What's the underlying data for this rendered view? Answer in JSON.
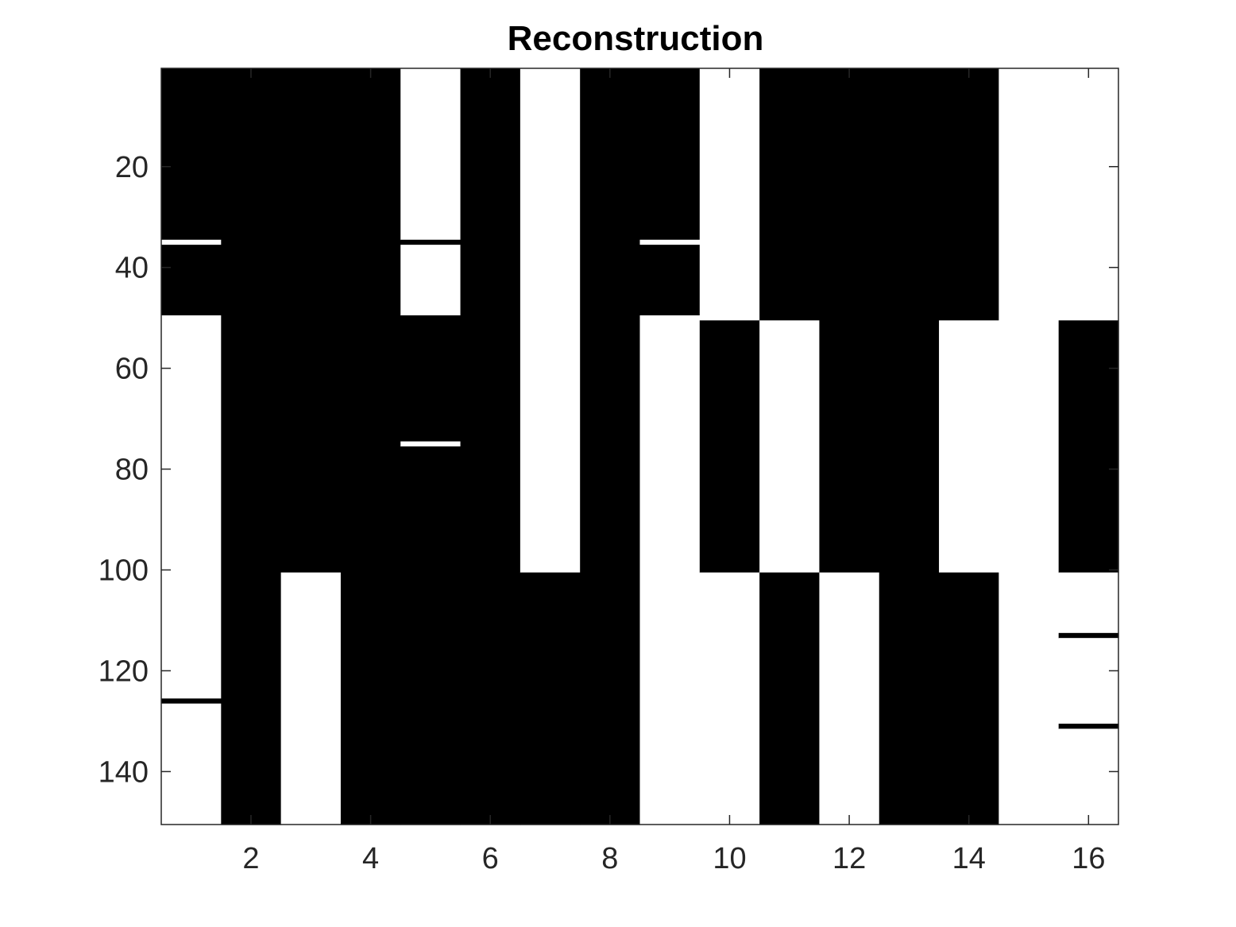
{
  "chart_data": {
    "type": "heatmap",
    "title": "Reconstruction",
    "xlabel": "",
    "ylabel": "",
    "xlim": [
      0.5,
      16.5
    ],
    "ylim": [
      0.5,
      150.5
    ],
    "y_direction": "reversed (row 1 at top)",
    "colormap": "binary: 0 = black, 1 = white",
    "grid": false,
    "x_ticks": [
      2,
      4,
      6,
      8,
      10,
      12,
      14,
      16
    ],
    "x_tick_labels": [
      "2",
      "4",
      "6",
      "8",
      "10",
      "12",
      "14",
      "16"
    ],
    "y_ticks": [
      20,
      40,
      60,
      80,
      100,
      120,
      140
    ],
    "y_tick_labels": [
      "20",
      "40",
      "60",
      "80",
      "100",
      "120",
      "140"
    ],
    "n_rows": 150,
    "n_columns": 16,
    "columns": [
      {
        "column": 1,
        "segments": [
          {
            "rows": [
              1,
              34
            ],
            "value": 0
          },
          {
            "rows": [
              35,
              35
            ],
            "value": 1
          },
          {
            "rows": [
              36,
              49
            ],
            "value": 0
          },
          {
            "rows": [
              50,
              125
            ],
            "value": 1
          },
          {
            "rows": [
              126,
              126
            ],
            "value": 0
          },
          {
            "rows": [
              127,
              150
            ],
            "value": 1
          }
        ]
      },
      {
        "column": 2,
        "segments": [
          {
            "rows": [
              1,
              150
            ],
            "value": 0
          }
        ]
      },
      {
        "column": 3,
        "segments": [
          {
            "rows": [
              1,
              100
            ],
            "value": 0
          },
          {
            "rows": [
              101,
              150
            ],
            "value": 1
          }
        ]
      },
      {
        "column": 4,
        "segments": [
          {
            "rows": [
              1,
              150
            ],
            "value": 0
          }
        ]
      },
      {
        "column": 5,
        "segments": [
          {
            "rows": [
              1,
              34
            ],
            "value": 1
          },
          {
            "rows": [
              35,
              35
            ],
            "value": 0
          },
          {
            "rows": [
              36,
              49
            ],
            "value": 1
          },
          {
            "rows": [
              50,
              74
            ],
            "value": 0
          },
          {
            "rows": [
              75,
              75
            ],
            "value": 1
          },
          {
            "rows": [
              76,
              150
            ],
            "value": 0
          }
        ]
      },
      {
        "column": 6,
        "segments": [
          {
            "rows": [
              1,
              150
            ],
            "value": 0
          }
        ]
      },
      {
        "column": 7,
        "segments": [
          {
            "rows": [
              1,
              100
            ],
            "value": 1
          },
          {
            "rows": [
              101,
              150
            ],
            "value": 0
          }
        ]
      },
      {
        "column": 8,
        "segments": [
          {
            "rows": [
              1,
              150
            ],
            "value": 0
          }
        ]
      },
      {
        "column": 9,
        "segments": [
          {
            "rows": [
              1,
              34
            ],
            "value": 0
          },
          {
            "rows": [
              35,
              35
            ],
            "value": 1
          },
          {
            "rows": [
              36,
              49
            ],
            "value": 0
          },
          {
            "rows": [
              50,
              150
            ],
            "value": 1
          }
        ]
      },
      {
        "column": 10,
        "segments": [
          {
            "rows": [
              1,
              50
            ],
            "value": 1
          },
          {
            "rows": [
              51,
              100
            ],
            "value": 0
          },
          {
            "rows": [
              101,
              150
            ],
            "value": 1
          }
        ]
      },
      {
        "column": 11,
        "segments": [
          {
            "rows": [
              1,
              50
            ],
            "value": 0
          },
          {
            "rows": [
              51,
              100
            ],
            "value": 1
          },
          {
            "rows": [
              101,
              150
            ],
            "value": 0
          }
        ]
      },
      {
        "column": 12,
        "segments": [
          {
            "rows": [
              1,
              100
            ],
            "value": 0
          },
          {
            "rows": [
              101,
              150
            ],
            "value": 1
          }
        ]
      },
      {
        "column": 13,
        "segments": [
          {
            "rows": [
              1,
              150
            ],
            "value": 0
          }
        ]
      },
      {
        "column": 14,
        "segments": [
          {
            "rows": [
              1,
              50
            ],
            "value": 0
          },
          {
            "rows": [
              51,
              100
            ],
            "value": 1
          },
          {
            "rows": [
              101,
              150
            ],
            "value": 0
          }
        ]
      },
      {
        "column": 15,
        "segments": [
          {
            "rows": [
              1,
              150
            ],
            "value": 1
          }
        ]
      },
      {
        "column": 16,
        "segments": [
          {
            "rows": [
              1,
              50
            ],
            "value": 1
          },
          {
            "rows": [
              51,
              100
            ],
            "value": 0
          },
          {
            "rows": [
              101,
              112
            ],
            "value": 1
          },
          {
            "rows": [
              113,
              113
            ],
            "value": 0
          },
          {
            "rows": [
              114,
              130
            ],
            "value": 1
          },
          {
            "rows": [
              131,
              131
            ],
            "value": 0
          },
          {
            "rows": [
              132,
              150
            ],
            "value": 1
          }
        ]
      }
    ]
  }
}
